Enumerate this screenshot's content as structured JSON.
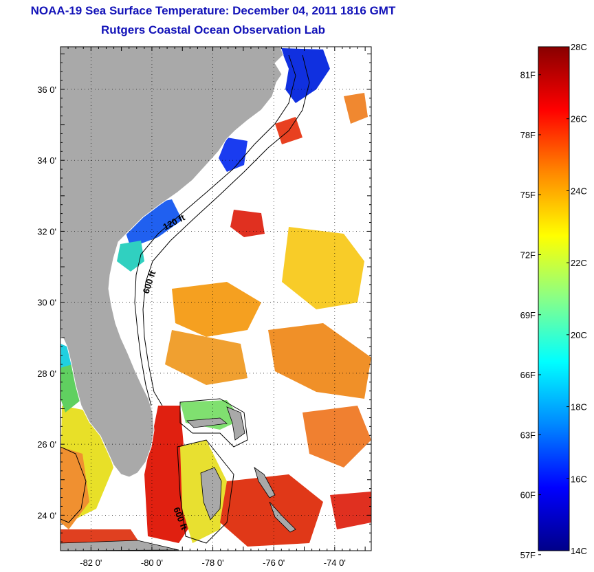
{
  "header": {
    "title": "NOAA-19 Sea Surface Temperature:  December 04, 2011 1816 GMT",
    "subtitle": "Rutgers Coastal Ocean Observation Lab"
  },
  "map": {
    "lat_range": [
      23.0,
      37.2
    ],
    "lon_range": [
      -83.0,
      -72.8
    ],
    "lat_ticks": [
      "24 0'",
      "26 0'",
      "28 0'",
      "30 0'",
      "32 0'",
      "34 0'",
      "36 0'"
    ],
    "lon_ticks": [
      "-82 0'",
      "-80 0'",
      "-78 0'",
      "-76 0'",
      "-74 0'"
    ],
    "grid": "dotted",
    "land_color": "#a9a9a9",
    "cloud_color": "#ffffff",
    "contour_labels": [
      "120 ft",
      "600 ft",
      "600 ft"
    ]
  },
  "colorbar": {
    "celsius_labels": [
      "28C",
      "26C",
      "24C",
      "22C",
      "20C",
      "18C",
      "16C",
      "14C"
    ],
    "fahrenheit_labels": [
      "81F",
      "78F",
      "75F",
      "72F",
      "69F",
      "66F",
      "63F",
      "60F",
      "57F"
    ],
    "range_c": [
      14,
      28
    ],
    "colors": [
      "#000088",
      "#0000ff",
      "#0088ff",
      "#00ffff",
      "#88ff88",
      "#ffff00",
      "#ff8800",
      "#ff0000",
      "#880000"
    ]
  }
}
